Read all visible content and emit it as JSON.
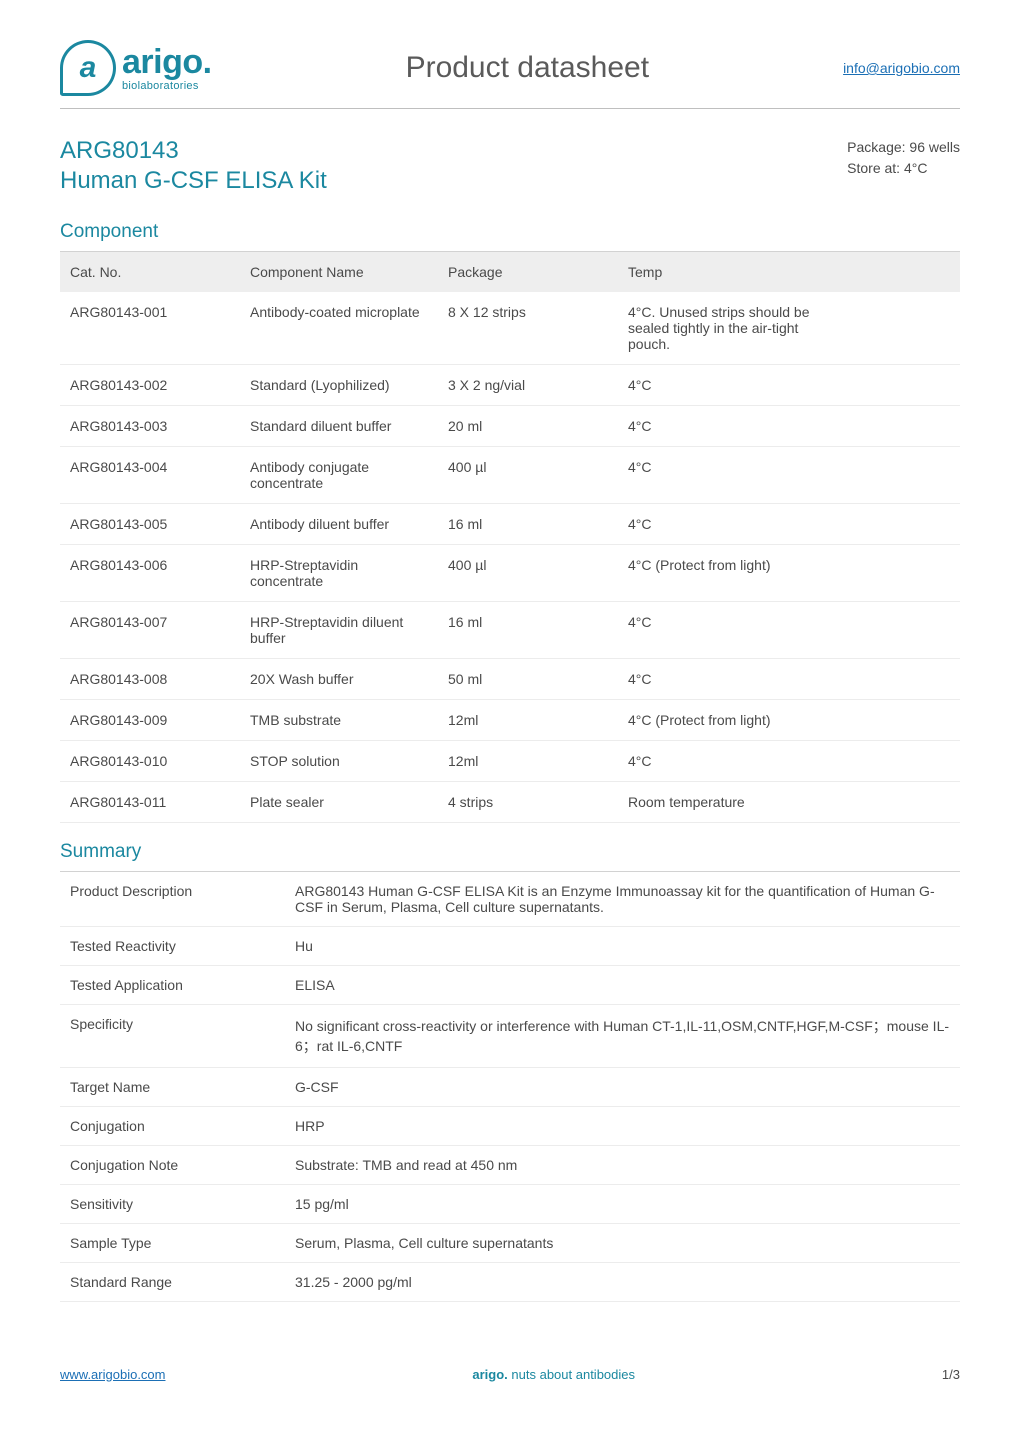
{
  "brand": {
    "name": "arigo.",
    "sub": "biolaboratories",
    "glyph": "a"
  },
  "header": {
    "title": "Product datasheet",
    "email": "info@arigobio.com"
  },
  "product": {
    "code": "ARG80143",
    "name": "Human G-CSF ELISA Kit"
  },
  "meta": {
    "package": "Package: 96 wells",
    "storage": "Store at: 4°C"
  },
  "sections": {
    "component_title": "Component",
    "summary_title": "Summary"
  },
  "component_table": {
    "columns": [
      "Cat. No.",
      "Component Name",
      "Package",
      "Temp"
    ],
    "rows": [
      [
        "ARG80143-001",
        "Antibody-coated microplate",
        "8 X 12 strips",
        "4°C. Unused strips should be sealed tightly in the air-tight pouch."
      ],
      [
        "ARG80143-002",
        "Standard (Lyophilized)",
        "3 X 2 ng/vial",
        "4°C"
      ],
      [
        "ARG80143-003",
        "Standard diluent buffer",
        "20 ml",
        "4°C"
      ],
      [
        "ARG80143-004",
        "Antibody conjugate concentrate",
        "400 µl",
        "4°C"
      ],
      [
        "ARG80143-005",
        "Antibody diluent buffer",
        "16 ml",
        "4°C"
      ],
      [
        "ARG80143-006",
        "HRP-Streptavidin concentrate",
        "400 µl",
        "4°C (Protect from light)"
      ],
      [
        "ARG80143-007",
        "HRP-Streptavidin diluent buffer",
        "16 ml",
        "4°C"
      ],
      [
        "ARG80143-008",
        "20X Wash buffer",
        "50 ml",
        "4°C"
      ],
      [
        "ARG80143-009",
        "TMB substrate",
        "12ml",
        "4°C (Protect from light)"
      ],
      [
        "ARG80143-010",
        "STOP solution",
        "12ml",
        "4°C"
      ],
      [
        "ARG80143-011",
        "Plate sealer",
        "4 strips",
        "Room temperature"
      ]
    ],
    "header_bg": "#eeeeee",
    "row_border": "#ececec",
    "font_size": 14,
    "col_widths_pct": [
      20,
      22,
      20,
      24
    ]
  },
  "summary_table": {
    "rows": [
      [
        "Product Description",
        "ARG80143 Human G-CSF ELISA Kit is an Enzyme Immunoassay kit for the quantification of Human G-CSF in Serum, Plasma, Cell culture supernatants."
      ],
      [
        "Tested Reactivity",
        "Hu"
      ],
      [
        "Tested Application",
        "ELISA"
      ],
      [
        "Specificity",
        "No significant cross-reactivity or interference with Human CT-1,IL-11,OSM,CNTF,HGF,M-CSF；mouse IL-6；rat IL-6,CNTF"
      ],
      [
        "Target Name",
        "G-CSF"
      ],
      [
        "Conjugation",
        "HRP"
      ],
      [
        "Conjugation Note",
        "Substrate: TMB and read at 450 nm"
      ],
      [
        "Sensitivity",
        "15 pg/ml"
      ],
      [
        "Sample Type",
        "Serum, Plasma, Cell culture supernatants"
      ],
      [
        "Standard Range",
        "31.25 - 2000 pg/ml"
      ]
    ],
    "key_width_pct": 25,
    "font_size": 14,
    "row_border": "#ececec"
  },
  "footer": {
    "link": "www.arigobio.com",
    "tag_brand": "arigo.",
    "tag_rest": " nuts about antibodies",
    "page": "1/3"
  },
  "colors": {
    "accent": "#1b88a0",
    "link": "#1b6fb5",
    "text": "#4a4a4a",
    "divider": "#bfbfbf",
    "section_line": "#d2d2d2"
  }
}
